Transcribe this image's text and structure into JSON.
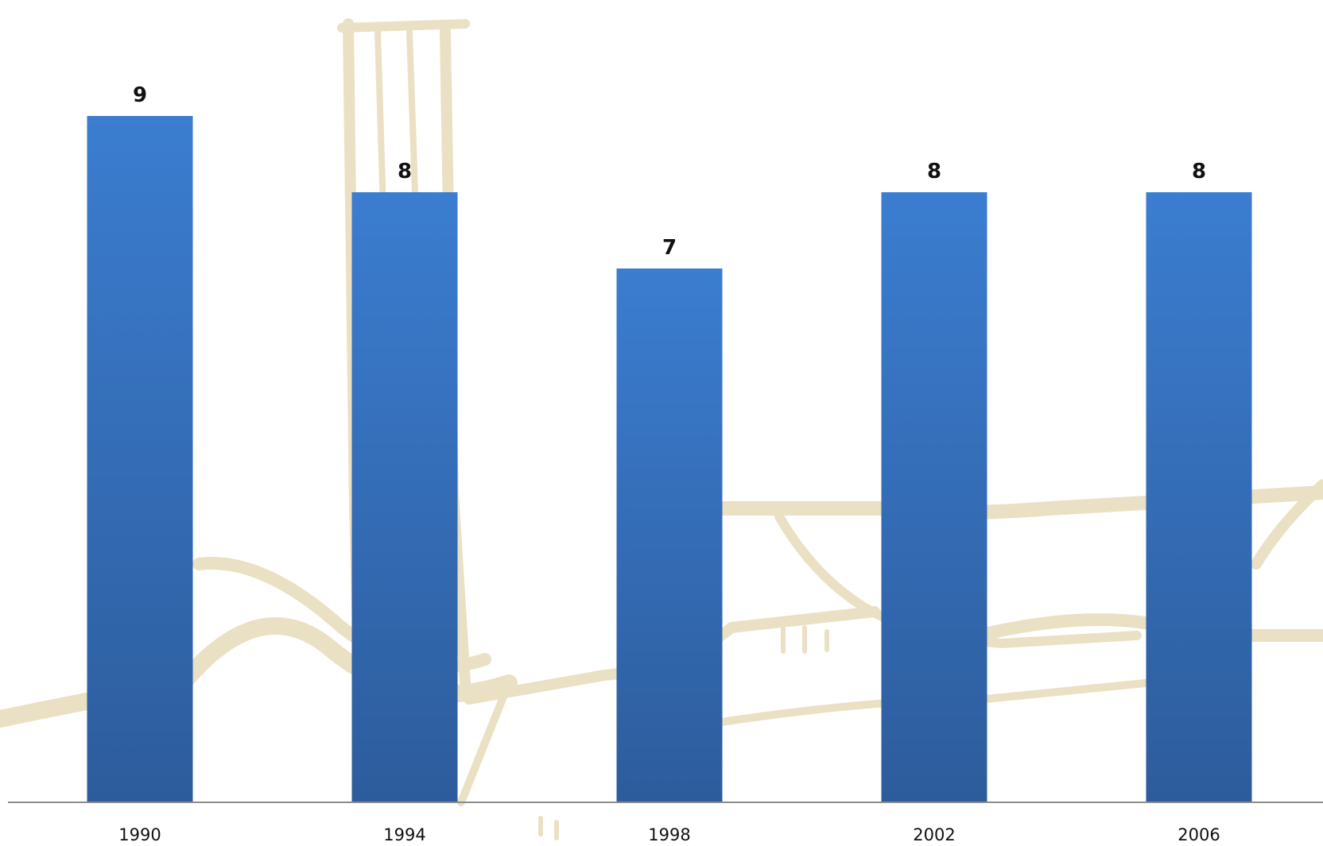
{
  "chart_data": {
    "type": "bar",
    "title": "",
    "xlabel": "",
    "ylabel": "",
    "categories": [
      "1990",
      "1994",
      "1998",
      "2002",
      "2006"
    ],
    "values": [
      9,
      8,
      7,
      8,
      8
    ],
    "ylim": [
      0,
      10
    ],
    "grid": false,
    "legend": "none",
    "data_labels": [
      "9",
      "8",
      "7",
      "8",
      "8"
    ],
    "bar_color_top": "#3B7DD0",
    "bar_color_bottom": "#2D5C9C",
    "background_sketch_color": "#E8DDBE"
  }
}
